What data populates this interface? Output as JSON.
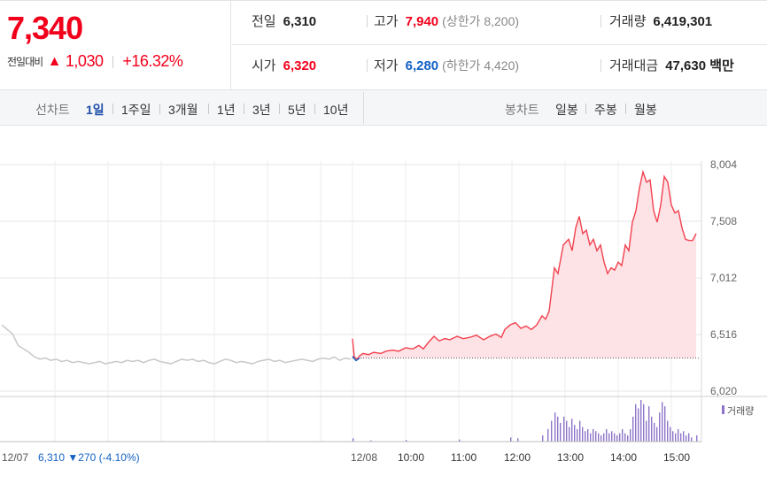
{
  "header": {
    "price": "7,340",
    "change_label": "전일대비",
    "change_arrow": "▲",
    "change_amount": "1,030",
    "change_rate": "+16.32%",
    "stats": {
      "prev_close_label": "전일",
      "prev_close": "6,310",
      "high_label": "고가",
      "high": "7,940",
      "upper_limit": "(상한가 8,200)",
      "volume_label": "거래량",
      "volume": "6,419,301",
      "open_label": "시가",
      "open": "6,320",
      "low_label": "저가",
      "low": "6,280",
      "lower_limit": "(하한가 4,420)",
      "trade_value_label": "거래대금",
      "trade_value": "47,630 백만"
    }
  },
  "period_bar": {
    "line_chart_label": "선차트",
    "periods": [
      "1일",
      "1주일",
      "3개월",
      "1년",
      "3년",
      "5년",
      "10년"
    ],
    "active_period": "1일",
    "candle_chart_label": "봉차트",
    "candle_periods": [
      "일봉",
      "주봉",
      "월봉"
    ]
  },
  "chart_data": {
    "type": "line",
    "y_ticks": [
      "8,004",
      "7,508",
      "7,012",
      "6,516",
      "6,020"
    ],
    "ylim": [
      6020,
      8004
    ],
    "prev_close_value": 6310,
    "prev_day_label": "12/07",
    "prev_day_summary": "6,310 ▼270 (-4.10%)",
    "day_label": "12/08",
    "x_ticks": [
      "10:00",
      "11:00",
      "12:00",
      "13:00",
      "14:00",
      "15:00"
    ],
    "volume_legend": "거래량",
    "prev_day_series": [
      6600,
      6560,
      6520,
      6420,
      6390,
      6360,
      6320,
      6300,
      6310,
      6290,
      6300,
      6280,
      6290,
      6270,
      6280,
      6270,
      6260,
      6270,
      6280,
      6260,
      6270,
      6280,
      6270,
      6290,
      6280,
      6290,
      6270,
      6290,
      6300,
      6280,
      6270,
      6260,
      6280,
      6300,
      6290,
      6300,
      6280,
      6290,
      6270,
      6260,
      6280,
      6300,
      6290,
      6270,
      6280,
      6270,
      6260,
      6280,
      6290,
      6300,
      6280,
      6290,
      6270,
      6280,
      6290,
      6300,
      6290,
      6280,
      6300,
      6310,
      6300,
      6320,
      6290,
      6310,
      6300
    ],
    "today_series": [
      [
        0,
        6480
      ],
      [
        2,
        6320
      ],
      [
        5,
        6300
      ],
      [
        8,
        6330
      ],
      [
        12,
        6350
      ],
      [
        18,
        6340
      ],
      [
        24,
        6360
      ],
      [
        32,
        6350
      ],
      [
        38,
        6370
      ],
      [
        45,
        6380
      ],
      [
        52,
        6370
      ],
      [
        60,
        6400
      ],
      [
        68,
        6390
      ],
      [
        75,
        6420
      ],
      [
        80,
        6390
      ],
      [
        86,
        6450
      ],
      [
        92,
        6500
      ],
      [
        98,
        6460
      ],
      [
        104,
        6480
      ],
      [
        110,
        6470
      ],
      [
        118,
        6500
      ],
      [
        125,
        6480
      ],
      [
        132,
        6490
      ],
      [
        140,
        6510
      ],
      [
        148,
        6470
      ],
      [
        155,
        6500
      ],
      [
        162,
        6520
      ],
      [
        168,
        6490
      ],
      [
        172,
        6560
      ],
      [
        178,
        6600
      ],
      [
        184,
        6620
      ],
      [
        190,
        6570
      ],
      [
        196,
        6590
      ],
      [
        202,
        6560
      ],
      [
        208,
        6600
      ],
      [
        214,
        6680
      ],
      [
        218,
        6650
      ],
      [
        222,
        6720
      ],
      [
        228,
        7100
      ],
      [
        232,
        7050
      ],
      [
        238,
        7300
      ],
      [
        244,
        7350
      ],
      [
        248,
        7250
      ],
      [
        252,
        7450
      ],
      [
        256,
        7550
      ],
      [
        260,
        7400
      ],
      [
        264,
        7430
      ],
      [
        268,
        7300
      ],
      [
        272,
        7350
      ],
      [
        276,
        7250
      ],
      [
        280,
        7300
      ],
      [
        284,
        7150
      ],
      [
        288,
        7050
      ],
      [
        292,
        7100
      ],
      [
        296,
        7080
      ],
      [
        300,
        7150
      ],
      [
        304,
        7120
      ],
      [
        308,
        7300
      ],
      [
        312,
        7250
      ],
      [
        316,
        7500
      ],
      [
        320,
        7600
      ],
      [
        324,
        7800
      ],
      [
        328,
        7940
      ],
      [
        332,
        7850
      ],
      [
        336,
        7870
      ],
      [
        340,
        7600
      ],
      [
        344,
        7500
      ],
      [
        348,
        7650
      ],
      [
        352,
        7900
      ],
      [
        356,
        7850
      ],
      [
        360,
        7650
      ],
      [
        364,
        7580
      ],
      [
        368,
        7600
      ],
      [
        372,
        7450
      ],
      [
        376,
        7350
      ],
      [
        380,
        7340
      ],
      [
        384,
        7340
      ],
      [
        388,
        7400
      ]
    ],
    "volume_bars": [
      [
        0,
        0.08
      ],
      [
        20,
        0.03
      ],
      [
        60,
        0.04
      ],
      [
        120,
        0.05
      ],
      [
        178,
        0.1
      ],
      [
        186,
        0.08
      ],
      [
        214,
        0.15
      ],
      [
        220,
        0.3
      ],
      [
        224,
        0.5
      ],
      [
        228,
        0.7
      ],
      [
        231,
        0.6
      ],
      [
        234,
        0.45
      ],
      [
        238,
        0.6
      ],
      [
        241,
        0.5
      ],
      [
        244,
        0.35
      ],
      [
        247,
        0.55
      ],
      [
        250,
        0.4
      ],
      [
        253,
        0.3
      ],
      [
        256,
        0.5
      ],
      [
        259,
        0.35
      ],
      [
        262,
        0.25
      ],
      [
        265,
        0.3
      ],
      [
        268,
        0.2
      ],
      [
        271,
        0.3
      ],
      [
        274,
        0.25
      ],
      [
        277,
        0.2
      ],
      [
        280,
        0.15
      ],
      [
        283,
        0.2
      ],
      [
        286,
        0.3
      ],
      [
        289,
        0.2
      ],
      [
        292,
        0.25
      ],
      [
        295,
        0.2
      ],
      [
        298,
        0.15
      ],
      [
        301,
        0.2
      ],
      [
        304,
        0.3
      ],
      [
        307,
        0.2
      ],
      [
        310,
        0.15
      ],
      [
        313,
        0.3
      ],
      [
        316,
        0.6
      ],
      [
        319,
        0.9
      ],
      [
        322,
        0.8
      ],
      [
        325,
        1.0
      ],
      [
        328,
        0.9
      ],
      [
        331,
        0.5
      ],
      [
        334,
        0.85
      ],
      [
        337,
        0.6
      ],
      [
        340,
        0.45
      ],
      [
        343,
        0.35
      ],
      [
        346,
        0.7
      ],
      [
        349,
        0.95
      ],
      [
        352,
        0.85
      ],
      [
        355,
        0.5
      ],
      [
        358,
        0.35
      ],
      [
        361,
        0.25
      ],
      [
        364,
        0.2
      ],
      [
        367,
        0.3
      ],
      [
        370,
        0.2
      ],
      [
        373,
        0.25
      ],
      [
        376,
        0.15
      ],
      [
        379,
        0.2
      ],
      [
        382,
        0.1
      ],
      [
        388,
        0.15
      ]
    ]
  }
}
